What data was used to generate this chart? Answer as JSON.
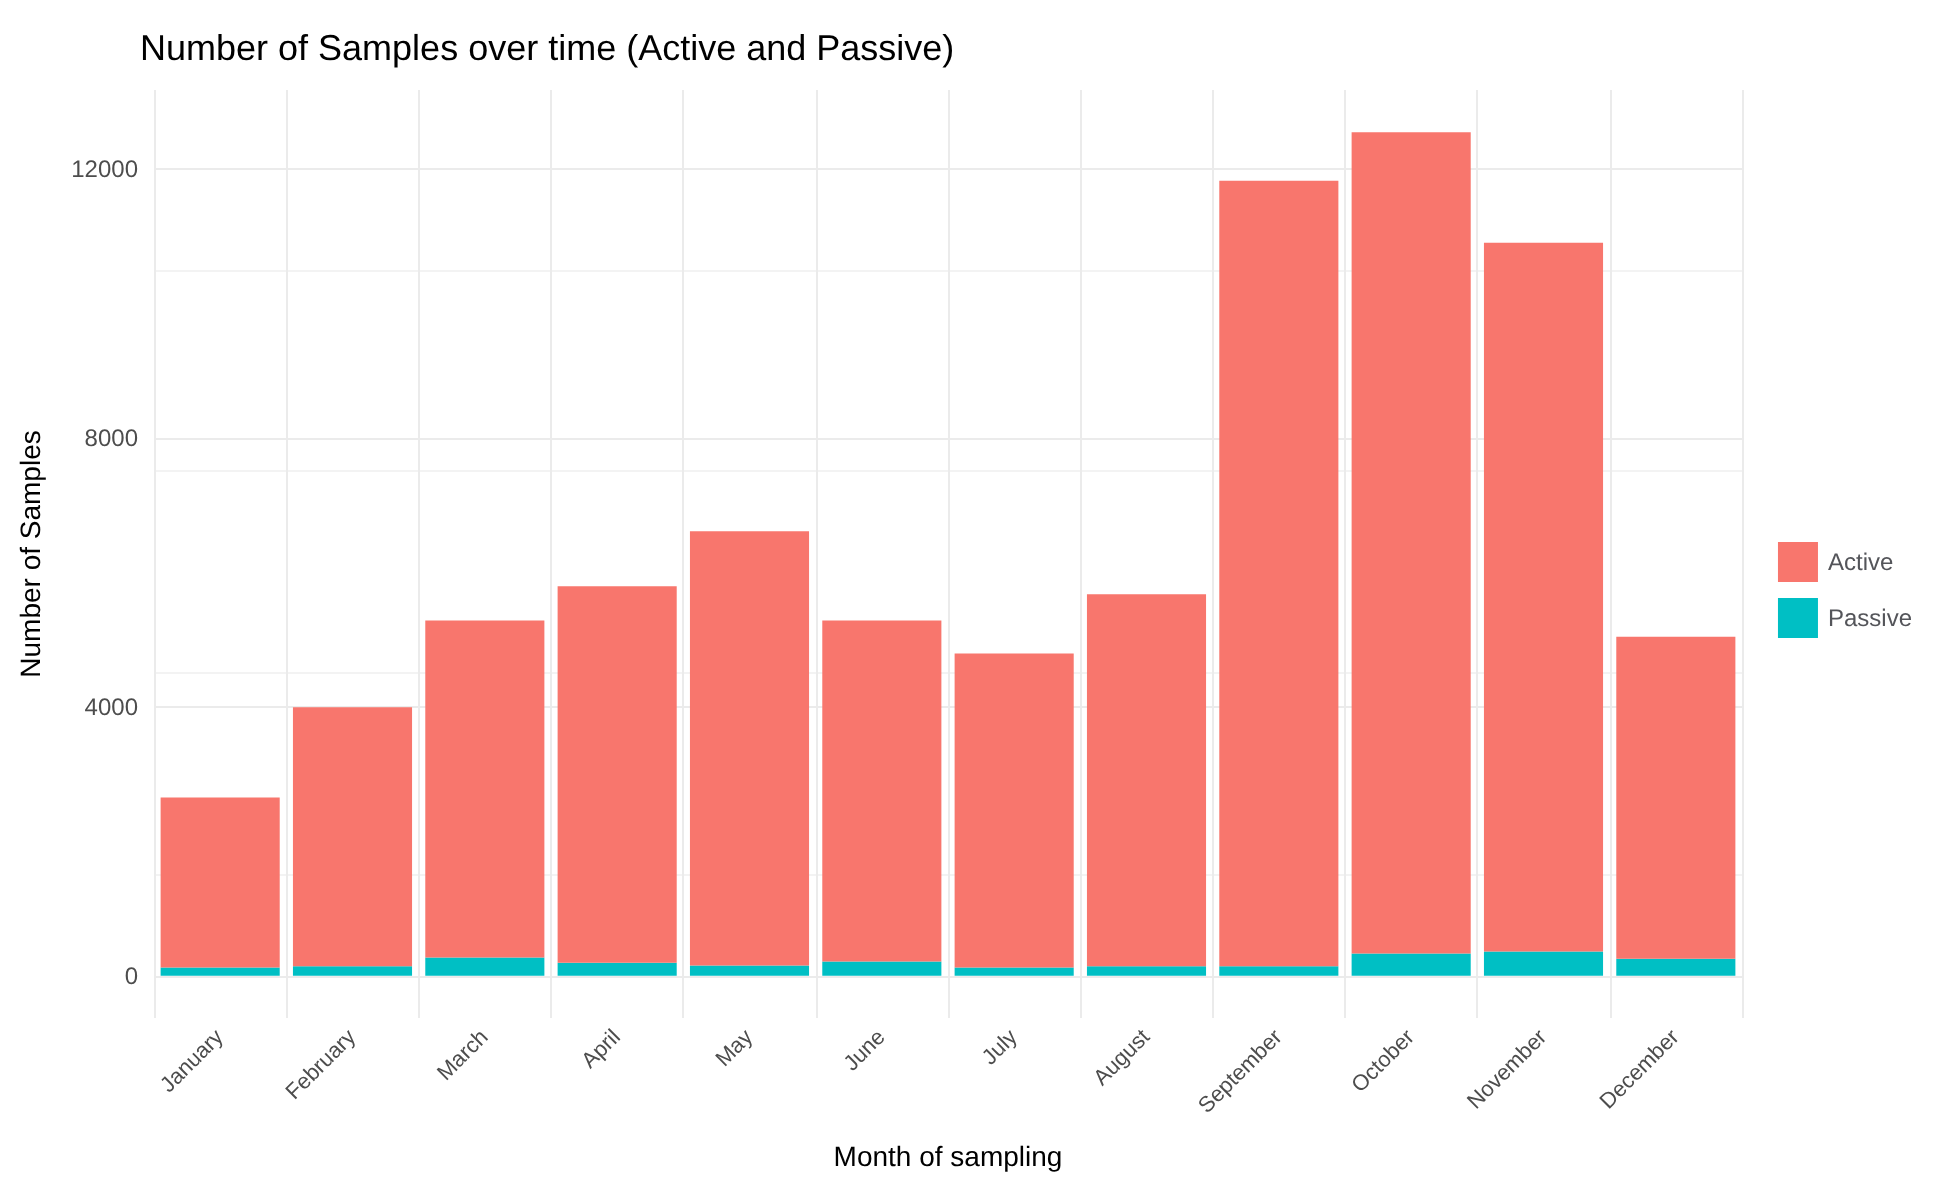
{
  "chart_data": {
    "type": "bar",
    "title": "Number of Samples over time (Active and Passive)",
    "xlabel": "Month of sampling",
    "ylabel": "Number of Samples",
    "categories": [
      "January",
      "February",
      "March",
      "April",
      "May",
      "June",
      "July",
      "August",
      "September",
      "October",
      "November",
      "December"
    ],
    "stacked": true,
    "series": [
      {
        "name": "Passive",
        "color": "#00bfc4",
        "values": [
          120,
          140,
          270,
          190,
          150,
          210,
          120,
          140,
          140,
          330,
          360,
          250
        ]
      },
      {
        "name": "Active",
        "color": "#f8766d",
        "values": [
          2530,
          3850,
          5010,
          5600,
          6460,
          5070,
          4670,
          5530,
          11680,
          12210,
          10540,
          4790
        ]
      }
    ],
    "ylim": [
      -630,
      13170
    ],
    "yticks": [
      0,
      4000,
      8000,
      12000
    ],
    "grid": true,
    "legend": "right"
  }
}
